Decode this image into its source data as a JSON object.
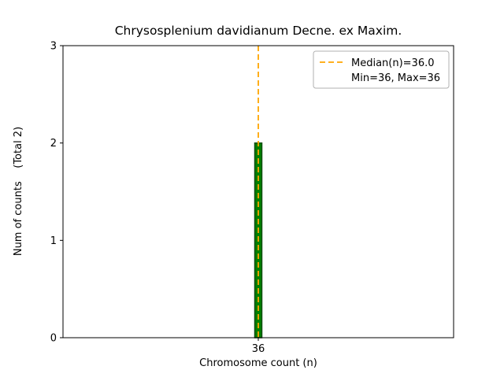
{
  "figure": {
    "background": "#ffffff"
  },
  "chart_data": {
    "type": "bar",
    "title": "Chrysosplenium davidianum Decne. ex Maxim.",
    "xlabel": "Chromosome count (n)",
    "ylabel": "Num of counts    (Total 2)",
    "total_label": "(Total 2)",
    "categories": [
      36
    ],
    "values": [
      2
    ],
    "total": 2,
    "ylim": [
      0,
      3
    ],
    "yticks": [
      0,
      1,
      2,
      3
    ],
    "xticks": [
      36
    ],
    "median": 36.0,
    "min": 36,
    "max": 36,
    "grid": false,
    "colors": {
      "bar_fill": "#008000",
      "bar_edge": "#0e4d0e",
      "median_line": "#ffa500",
      "axis": "#000000",
      "legend_border": "#b0b0b0",
      "legend_bg": "#ffffff"
    },
    "legend": {
      "position": "upper right",
      "entries": [
        {
          "label": "Median(n)=36.0",
          "marker": "dashed-line",
          "color": "#ffa500"
        },
        {
          "label": "Min=36, Max=36",
          "marker": "none"
        }
      ]
    }
  }
}
